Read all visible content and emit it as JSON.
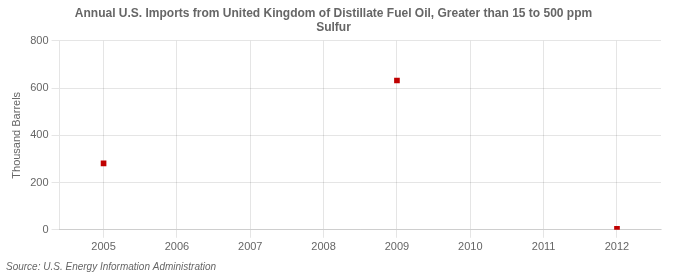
{
  "chart_data": {
    "type": "scatter",
    "title": "Annual U.S. Imports from United Kingdom of Distillate Fuel Oil, Greater than 15 to 500 ppm\nSulfur",
    "ylabel": "Thousand Barrels",
    "source": "Source: U.S. Energy Information Administration",
    "x": [
      2005,
      2009,
      2012
    ],
    "values": [
      281,
      632,
      4
    ],
    "color": "#c00000",
    "marker": "square",
    "xlim": [
      2004.4,
      2012.6
    ],
    "xticks": [
      2005,
      2006,
      2007,
      2008,
      2009,
      2010,
      2011,
      2012
    ],
    "ylim": [
      0,
      800
    ],
    "yticks": [
      0,
      200,
      400,
      600,
      800
    ],
    "grid": true
  }
}
